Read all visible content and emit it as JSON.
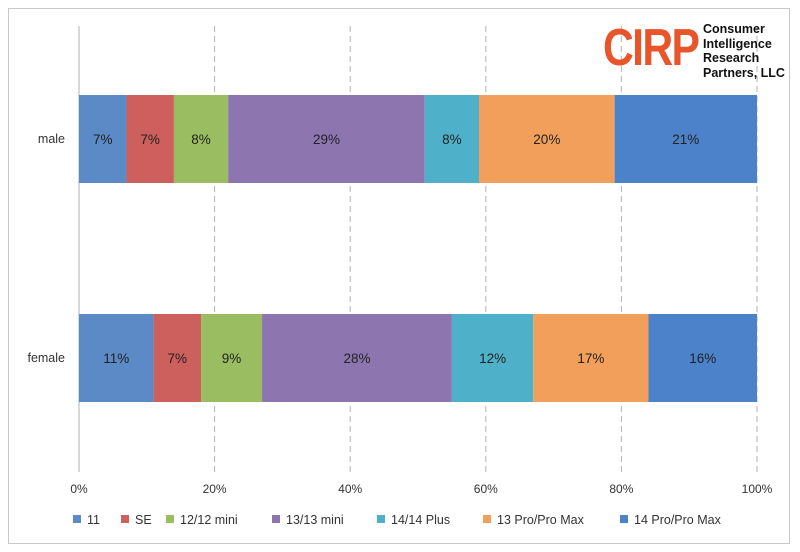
{
  "logo": {
    "mark": "CIRP",
    "lines": [
      "Consumer",
      "Intelligence",
      "Research",
      "Partners, LLC"
    ]
  },
  "chart_data": {
    "type": "bar",
    "orientation": "horizontal",
    "stacked": true,
    "percent_stacked": true,
    "title": "",
    "xlabel": "",
    "ylabel": "",
    "categories": [
      "male",
      "female"
    ],
    "xlim": [
      0,
      100
    ],
    "x_ticks": [
      "0%",
      "20%",
      "40%",
      "60%",
      "80%",
      "100%"
    ],
    "grid": "vertical dashed",
    "legend_position": "bottom",
    "series": [
      {
        "name": "11",
        "color": "#5b8ac6",
        "values": [
          7,
          11
        ],
        "labels": [
          "7%",
          "11%"
        ]
      },
      {
        "name": "SE",
        "color": "#cd5f5c",
        "values": [
          7,
          7
        ],
        "labels": [
          "7%",
          "7%"
        ]
      },
      {
        "name": "12/12 mini",
        "color": "#9bbd62",
        "values": [
          8,
          9
        ],
        "labels": [
          "8%",
          "9%"
        ]
      },
      {
        "name": "13/13 mini",
        "color": "#8d75b0",
        "values": [
          29,
          28
        ],
        "labels": [
          "29%",
          "28%"
        ]
      },
      {
        "name": "14/14 Plus",
        "color": "#4fb1c9",
        "values": [
          8,
          12
        ],
        "labels": [
          "8%",
          "12%"
        ]
      },
      {
        "name": "13 Pro/Pro Max",
        "color": "#f19f5b",
        "values": [
          20,
          17
        ],
        "labels": [
          "20%",
          "17%"
        ]
      },
      {
        "name": "14 Pro/Pro Max",
        "color": "#4b82c9",
        "values": [
          21,
          16
        ],
        "labels": [
          "21%",
          "16%"
        ]
      }
    ],
    "totals": [
      100,
      100
    ]
  }
}
